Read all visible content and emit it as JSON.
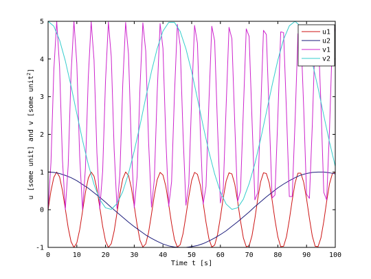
{
  "chart_data": {
    "type": "line",
    "xlabel": "Time t [s]",
    "ylabel_main": "u [some unit] and v [some unit",
    "ylabel_sup": "2",
    "ylabel_end": "]",
    "xlim": [
      0,
      100
    ],
    "ylim": [
      -1,
      5
    ],
    "xticks": [
      0,
      10,
      20,
      30,
      40,
      50,
      60,
      70,
      80,
      90,
      100
    ],
    "yticks": [
      -1,
      0,
      1,
      2,
      3,
      4,
      5
    ],
    "grid": false,
    "legend_position": "top-right",
    "series": [
      {
        "name": "u1",
        "color": "#cc1111",
        "x": [
          0,
          1,
          2,
          3,
          4,
          5,
          6,
          7,
          8,
          9,
          10,
          11,
          12,
          13,
          14,
          15,
          16,
          17,
          18,
          19,
          20,
          21,
          22,
          23,
          24,
          25,
          26,
          27,
          28,
          29,
          30,
          31,
          32,
          33,
          34,
          35,
          36,
          37,
          38,
          39,
          40,
          41,
          42,
          43,
          44,
          45,
          46,
          47,
          48,
          49,
          50,
          51,
          52,
          53,
          54,
          55,
          56,
          57,
          58,
          59,
          60,
          61,
          62,
          63,
          64,
          65,
          66,
          67,
          68,
          69,
          70,
          71,
          72,
          73,
          74,
          75,
          76,
          77,
          78,
          79,
          80,
          81,
          82,
          83,
          84,
          85,
          86,
          87,
          88,
          89,
          90,
          91,
          92,
          93,
          94,
          95,
          96,
          97,
          98,
          99,
          100
        ],
        "values": [
          0,
          0.5,
          0.86,
          1,
          0.87,
          0.51,
          0.02,
          -0.48,
          -0.85,
          -1,
          -0.88,
          -0.53,
          -0.04,
          0.46,
          0.84,
          1,
          0.89,
          0.55,
          0.06,
          -0.44,
          -0.83,
          -1,
          -0.9,
          -0.57,
          -0.08,
          0.42,
          0.82,
          1,
          0.91,
          0.58,
          0.1,
          -0.41,
          -0.81,
          -0.99,
          -0.91,
          -0.6,
          -0.12,
          0.39,
          0.8,
          0.99,
          0.92,
          0.62,
          0.14,
          -0.37,
          -0.79,
          -0.99,
          -0.93,
          -0.63,
          -0.16,
          0.35,
          0.78,
          0.99,
          0.94,
          0.65,
          0.18,
          -0.34,
          -0.77,
          -0.99,
          -0.94,
          -0.66,
          -0.2,
          0.32,
          0.76,
          0.98,
          0.95,
          0.68,
          0.22,
          -0.3,
          -0.75,
          -0.98,
          -0.96,
          -0.69,
          -0.24,
          0.29,
          0.74,
          0.98,
          0.96,
          0.71,
          0.26,
          -0.27,
          -0.72,
          -0.98,
          -0.97,
          -0.72,
          -0.27,
          0.25,
          0.71,
          0.97,
          0.97,
          0.73,
          0.29,
          -0.23,
          -0.7,
          -0.97,
          -0.98,
          -0.75,
          -0.31,
          0.22,
          0.69,
          0.96,
          0.98
        ]
      },
      {
        "name": "u2",
        "color": "#1a1a7a",
        "x": [
          0,
          2,
          4,
          6,
          8,
          10,
          12,
          14,
          16,
          18,
          20,
          22,
          24,
          26,
          28,
          30,
          32,
          34,
          36,
          38,
          40,
          42,
          44,
          46,
          48,
          50,
          52,
          54,
          56,
          58,
          60,
          62,
          64,
          66,
          68,
          70,
          72,
          74,
          76,
          78,
          80,
          82,
          84,
          86,
          88,
          90,
          92,
          94,
          96,
          98,
          100
        ],
        "values": [
          1,
          0.99,
          0.96,
          0.91,
          0.85,
          0.77,
          0.67,
          0.57,
          0.45,
          0.33,
          0.2,
          0.06,
          -0.07,
          -0.2,
          -0.33,
          -0.45,
          -0.56,
          -0.67,
          -0.76,
          -0.84,
          -0.91,
          -0.96,
          -0.99,
          -1,
          -1,
          -0.98,
          -0.95,
          -0.9,
          -0.83,
          -0.75,
          -0.66,
          -0.56,
          -0.44,
          -0.32,
          -0.19,
          -0.06,
          0.08,
          0.21,
          0.34,
          0.46,
          0.58,
          0.68,
          0.77,
          0.85,
          0.92,
          0.96,
          0.99,
          1,
          1,
          0.98,
          0.95
        ]
      },
      {
        "name": "v1",
        "color": "#cc22cc",
        "x": [
          0,
          1,
          2,
          3,
          4,
          5,
          6,
          7,
          8,
          9,
          10,
          11,
          12,
          13,
          14,
          15,
          16,
          17,
          18,
          19,
          20,
          21,
          22,
          23,
          24,
          25,
          26,
          27,
          28,
          29,
          30,
          31,
          32,
          33,
          34,
          35,
          36,
          37,
          38,
          39,
          40,
          41,
          42,
          43,
          44,
          45,
          46,
          47,
          48,
          49,
          50,
          51,
          52,
          53,
          54,
          55,
          56,
          57,
          58,
          59,
          60,
          61,
          62,
          63,
          64,
          65,
          66,
          67,
          68,
          69,
          70,
          71,
          72,
          73,
          74,
          75,
          76,
          77,
          78,
          79,
          80,
          81,
          82,
          83,
          84,
          85,
          86,
          87,
          88,
          89,
          90,
          91,
          92,
          93,
          94,
          95,
          96,
          97,
          98,
          99,
          100
        ],
        "values": [
          0,
          1.25,
          3.71,
          5,
          3.79,
          1.33,
          0,
          1.18,
          3.61,
          5,
          3.88,
          1.42,
          0,
          1.1,
          3.52,
          4.99,
          3.97,
          1.51,
          0.02,
          1.02,
          3.43,
          4.98,
          4.06,
          1.6,
          0.03,
          0.95,
          3.33,
          4.97,
          4.13,
          1.69,
          0.05,
          0.88,
          3.24,
          4.96,
          4.21,
          1.79,
          0.07,
          0.81,
          3.14,
          4.94,
          4.28,
          1.89,
          0.09,
          0.74,
          3.05,
          4.92,
          4.35,
          1.99,
          0.12,
          0.68,
          2.95,
          4.89,
          4.42,
          2.09,
          0.15,
          0.62,
          2.85,
          4.87,
          4.48,
          2.19,
          0.18,
          0.56,
          2.75,
          4.84,
          4.54,
          2.29,
          0.22,
          0.5,
          2.65,
          4.8,
          4.6,
          2.4,
          0.26,
          0.45,
          2.55,
          4.76,
          4.65,
          2.5,
          0.31,
          0.39,
          2.45,
          4.72,
          4.7,
          2.61,
          0.35,
          0.35,
          2.35,
          4.67,
          4.75,
          2.71,
          0.41,
          0.3,
          2.24,
          4.62,
          4.79,
          2.82,
          0.46,
          0.26,
          2.14,
          4.56,
          4.82
        ]
      },
      {
        "name": "v2",
        "color": "#33cccc",
        "x": [
          0,
          2,
          4,
          6,
          8,
          10,
          12,
          14,
          16,
          18,
          20,
          22,
          24,
          26,
          28,
          30,
          32,
          34,
          36,
          38,
          40,
          42,
          44,
          46,
          48,
          50,
          52,
          54,
          56,
          58,
          60,
          62,
          64,
          66,
          68,
          70,
          72,
          74,
          76,
          78,
          80,
          82,
          84,
          86,
          88,
          90,
          92,
          94,
          96,
          98,
          100
        ],
        "values": [
          5,
          4.87,
          4.5,
          3.95,
          3.28,
          2.55,
          1.84,
          1.2,
          0.67,
          0.27,
          0.05,
          0.01,
          0.16,
          0.48,
          0.96,
          1.56,
          2.24,
          2.97,
          3.67,
          4.28,
          4.74,
          4.97,
          4.97,
          4.73,
          4.27,
          3.66,
          2.95,
          2.22,
          1.54,
          0.95,
          0.47,
          0.15,
          0.01,
          0.05,
          0.28,
          0.69,
          1.22,
          1.87,
          2.58,
          3.3,
          3.97,
          4.52,
          4.88,
          5,
          4.86,
          4.47,
          3.91,
          3.23,
          2.5,
          1.79,
          1.15
        ]
      }
    ]
  }
}
